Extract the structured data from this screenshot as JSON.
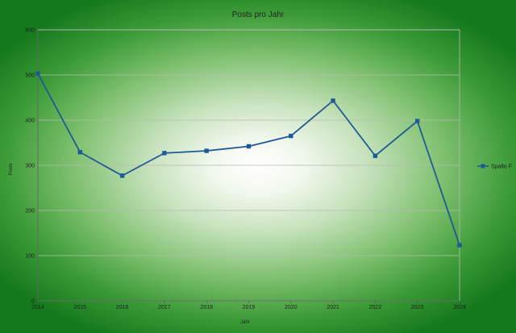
{
  "chart_data": {
    "type": "line",
    "title": "Posts pro Jahr",
    "xlabel": "Jahr",
    "ylabel": "Posts",
    "x": [
      "2014",
      "2015",
      "2016",
      "2017",
      "2018",
      "2019",
      "2020",
      "2021",
      "2022",
      "2023",
      "2024"
    ],
    "ylim": [
      0,
      600
    ],
    "yticks": [
      "0",
      "100",
      "200",
      "300",
      "400",
      "500",
      "600"
    ],
    "grid": true,
    "legend_position": "right",
    "series": [
      {
        "name": "Spalte F",
        "color": "#1f5a96",
        "values": [
          503,
          329,
          277,
          327,
          332,
          342,
          365,
          443,
          321,
          398,
          123
        ]
      }
    ]
  }
}
